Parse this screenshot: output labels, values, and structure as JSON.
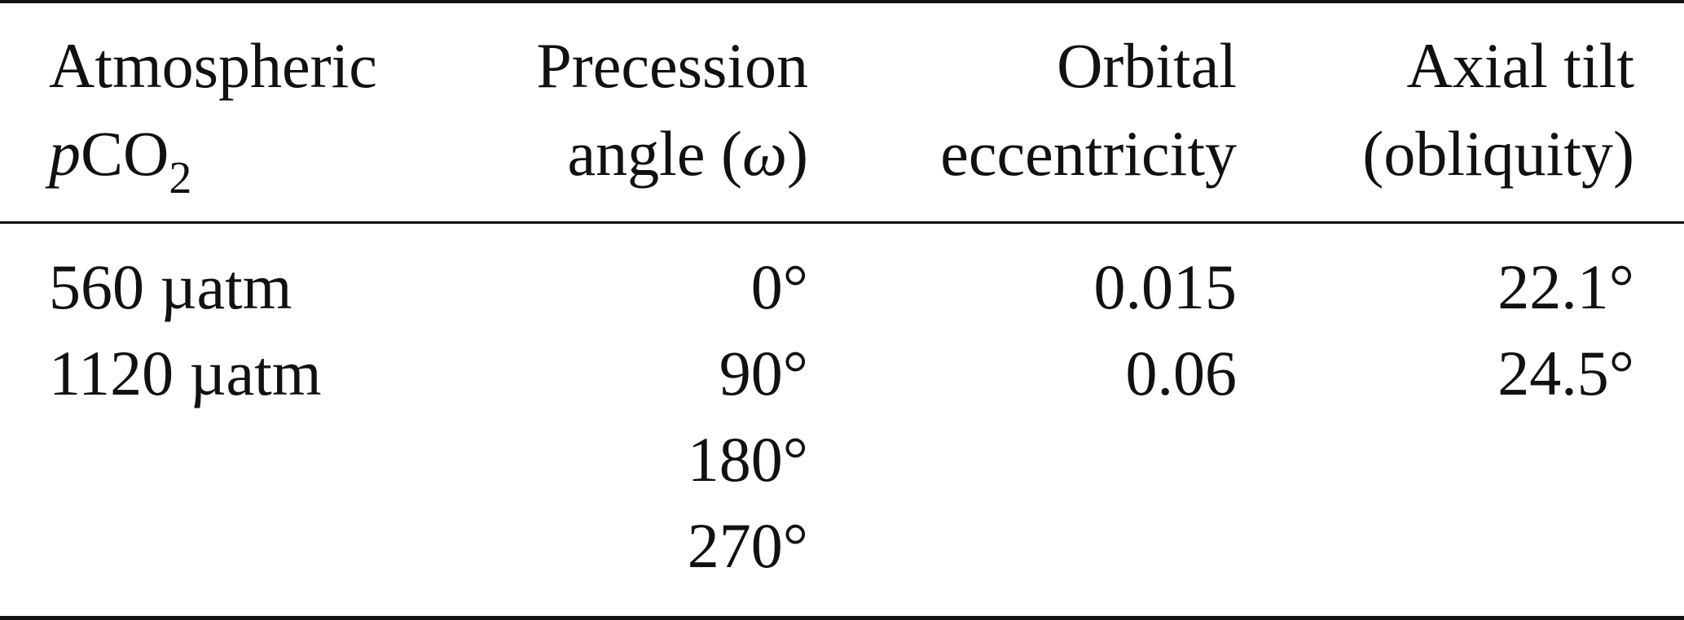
{
  "table": {
    "headers": [
      {
        "line1": "Atmospheric",
        "line2_italic": "p",
        "line2_main": "CO",
        "line2_sub": "2"
      },
      {
        "line1": "Precession",
        "line2_prefix": "angle (",
        "line2_symbol": "ω",
        "line2_suffix": ")"
      },
      {
        "line1": "Orbital",
        "line2": "eccentricity"
      },
      {
        "line1": "Axial tilt",
        "line2": "(obliquity)"
      }
    ],
    "columns": {
      "pco2": [
        "560 µatm",
        "1120 µatm"
      ],
      "precession": [
        "0°",
        "90°",
        "180°",
        "270°"
      ],
      "eccentricity": [
        "0.015",
        "0.06"
      ],
      "obliquity": [
        "22.1°",
        "24.5°"
      ]
    }
  }
}
